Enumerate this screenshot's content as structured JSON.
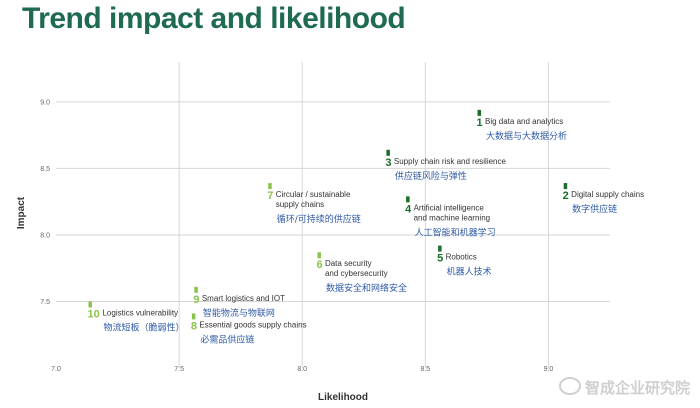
{
  "chart_data": {
    "type": "scatter",
    "title": "Trend impact and likelihood",
    "xlabel": "Likelihood",
    "ylabel": "Impact",
    "xlim": [
      7.0,
      9.25
    ],
    "ylim": [
      7.0,
      9.3
    ],
    "x_ticks": [
      "7.0",
      "7.5",
      "8.0",
      "8.5",
      "9.0"
    ],
    "y_ticks": [
      "7.5",
      "8.0",
      "8.5",
      "9.0"
    ],
    "grid": true,
    "colors": {
      "dark": "#1b6e2a",
      "light": "#8bc34a",
      "text": "#333333",
      "cn": "#2e5aa8"
    },
    "points": [
      {
        "rank": "1",
        "x": 8.72,
        "y": 8.88,
        "group": "dark",
        "label": "Big data and analytics",
        "cn": "大数据与大数据分析"
      },
      {
        "rank": "2",
        "x": 9.07,
        "y": 8.33,
        "group": "dark",
        "label": "Digital supply chains",
        "cn": "数字供应链"
      },
      {
        "rank": "3",
        "x": 8.35,
        "y": 8.58,
        "group": "dark",
        "label": "Supply chain risk and resilience",
        "cn": "供应链风险与弹性"
      },
      {
        "rank": "4",
        "x": 8.43,
        "y": 8.23,
        "group": "dark",
        "label": "Artificial intelligence\nand machine learning",
        "cn": "人工智能和机器学习"
      },
      {
        "rank": "5",
        "x": 8.56,
        "y": 7.86,
        "group": "dark",
        "label": "Robotics",
        "cn": "机器人技术"
      },
      {
        "rank": "6",
        "x": 8.07,
        "y": 7.81,
        "group": "light",
        "label": "Data security\nand cybersecurity",
        "cn": "数据安全和网络安全"
      },
      {
        "rank": "7",
        "x": 7.87,
        "y": 8.33,
        "group": "light",
        "label": "Circular / sustainable\nsupply chains",
        "cn": "循环/可持续的供应链"
      },
      {
        "rank": "8",
        "x": 7.56,
        "y": 7.35,
        "group": "light",
        "label": "Essential goods supply chains",
        "cn": "必需品供应链"
      },
      {
        "rank": "9",
        "x": 7.57,
        "y": 7.55,
        "group": "light",
        "label": "Smart logistics and IOT",
        "cn": "智能物流与物联网"
      },
      {
        "rank": "10",
        "x": 7.14,
        "y": 7.44,
        "group": "light",
        "label": "Logistics vulnerability",
        "cn": "物流短板（脆弱性）"
      }
    ]
  },
  "watermark": "智成企业研究院"
}
